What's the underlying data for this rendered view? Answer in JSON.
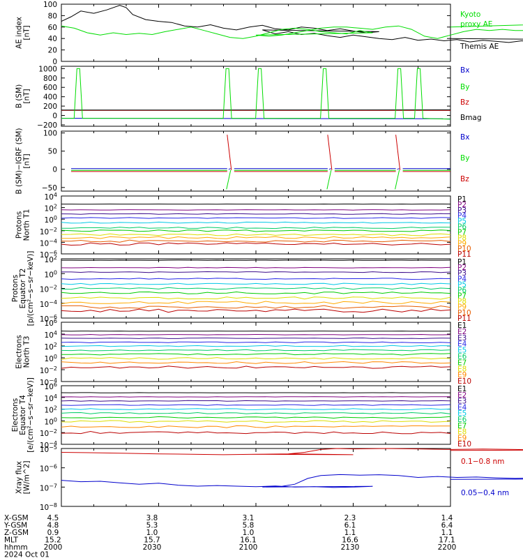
{
  "chart_data": [
    {
      "type": "line",
      "ylabel": [
        "AE index",
        "[nT]"
      ],
      "ylim": [
        0,
        100
      ],
      "ticks": [
        "0",
        "20",
        "40",
        "60",
        "80",
        "100"
      ],
      "legend": [
        {
          "text": "Kyoto",
          "color": "#00dd00"
        },
        {
          "text": "proxy AE",
          "color": "#00dd00"
        },
        {
          "text": "Themis AE",
          "color": "#000000"
        }
      ],
      "series": [
        {
          "color": "#000000",
          "x": [
            2000,
            2003,
            2006,
            2010,
            2014,
            2018,
            2020,
            2022,
            2026,
            2030,
            2034,
            2038,
            2042,
            2046,
            2050,
            2054,
            2058,
            2062,
            2066,
            2070,
            2074,
            2078,
            2082,
            2086,
            2090,
            2094,
            2098,
            2102,
            2106,
            2110,
            2114,
            2118,
            2122,
            2126,
            2130,
            2134,
            2138,
            2142,
            2146,
            2150,
            2154,
            2158,
            2162,
            2166,
            2170,
            2174,
            2178,
            2182,
            2186,
            2190,
            2194,
            2198,
            2200
          ],
          "y": [
            70,
            78,
            88,
            84,
            90,
            98,
            94,
            82,
            73,
            70,
            68,
            62,
            60,
            64,
            58,
            55,
            60,
            63,
            57,
            55,
            60,
            58,
            54,
            57,
            53,
            50,
            52,
            55,
            48,
            52,
            47,
            49,
            45,
            42,
            46,
            43,
            40,
            38,
            42,
            37,
            39,
            36,
            38,
            34,
            37,
            35,
            33,
            36,
            32,
            34,
            36,
            38,
            40
          ]
        },
        {
          "color": "#00dd00",
          "x": [
            2000,
            2004,
            2008,
            2012,
            2016,
            2020,
            2024,
            2028,
            2032,
            2036,
            2040,
            2044,
            2048,
            2052,
            2056,
            2060,
            2064,
            2068,
            2072,
            2076,
            2080,
            2084,
            2088,
            2092,
            2096,
            2100,
            2104,
            2108,
            2112,
            2116,
            2120,
            2124,
            2128,
            2132,
            2136,
            2140,
            2144,
            2148,
            2152,
            2156,
            2160,
            2164,
            2168,
            2172,
            2176,
            2180,
            2184,
            2188,
            2192,
            2196,
            2200
          ],
          "y": [
            62,
            58,
            50,
            46,
            50,
            47,
            49,
            47,
            52,
            56,
            60,
            54,
            48,
            42,
            40,
            44,
            50,
            56,
            58,
            56,
            52,
            50,
            48,
            54,
            50,
            46,
            44,
            46,
            50,
            54,
            58,
            60,
            60,
            58,
            56,
            60,
            62,
            56,
            44,
            40,
            46,
            52,
            56,
            54,
            56,
            54,
            54,
            56,
            60,
            66,
            60
          ]
        }
      ]
    },
    {
      "type": "line",
      "ylabel": [
        "B (SM)",
        "[nT]"
      ],
      "ylim": [
        -230,
        1050
      ],
      "ticks": [
        "−200",
        "0",
        "200",
        "400",
        "600",
        "800",
        "1000"
      ],
      "legend": [
        {
          "text": "Bx",
          "color": "#0000cc"
        },
        {
          "text": "By",
          "color": "#00dd00"
        },
        {
          "text": "Bz",
          "color": "#cc0000"
        },
        {
          "text": "Bmag",
          "color": "#000000"
        }
      ],
      "spikes": [
        2005,
        2051,
        2061,
        2081,
        2144,
        2150
      ]
    },
    {
      "type": "line",
      "ylabel": [
        "B (SM)−IGRF (SM)",
        "[nT]"
      ],
      "ylim": [
        -60,
        105
      ],
      "ticks": [
        "−50",
        "0",
        "50",
        "100"
      ],
      "legend": [
        {
          "text": "Bx",
          "color": "#0000cc"
        },
        {
          "text": "By",
          "color": "#00dd00"
        },
        {
          "text": "Bz",
          "color": "#cc0000"
        }
      ],
      "crossings": [
        2052,
        2083,
        2144
      ]
    },
    {
      "type": "line",
      "ylabel": [
        "Protons",
        "North T1"
      ],
      "logrange": [
        -6,
        4
      ],
      "ticks": [
        "10^-6",
        "10^-4",
        "10^-2",
        "10^0",
        "10^2",
        "10^4"
      ],
      "channels": [
        {
          "name": "P1",
          "color": "#000000",
          "level": 2.6
        },
        {
          "name": "P2",
          "color": "#7f007f",
          "level": 1.6
        },
        {
          "name": "P3",
          "color": "#3a0a8a",
          "level": 0.9
        },
        {
          "name": "P4",
          "color": "#2626e6",
          "level": 0.2
        },
        {
          "name": "P5",
          "color": "#00c8e6",
          "level": -0.6
        },
        {
          "name": "P6",
          "color": "#00cc66",
          "level": -1.5
        },
        {
          "name": "P7",
          "color": "#00cc00",
          "level": -2.0
        },
        {
          "name": "P8",
          "color": "#dddd00",
          "level": -2.7
        },
        {
          "name": "P9",
          "color": "#ffaa00",
          "level": -3.2
        },
        {
          "name": "P10",
          "color": "#e65c00",
          "level": -3.8
        },
        {
          "name": "P11",
          "color": "#bb0000",
          "level": -4.3
        }
      ]
    },
    {
      "type": "line",
      "ylabel": [
        "Protons",
        "Equator T2",
        "[p/(cm²−s−sr−keV)]"
      ],
      "logrange": [
        -6,
        2
      ],
      "ticks": [
        "10^-6",
        "10^-4",
        "10^-2",
        "10^0",
        "10^2"
      ],
      "channels": [
        {
          "name": "P1",
          "color": "#000000",
          "level": 1.8
        },
        {
          "name": "P2",
          "color": "#7f007f",
          "level": 0.8
        },
        {
          "name": "P3",
          "color": "#3a0a8a",
          "level": 0.2
        },
        {
          "name": "P4",
          "color": "#2626e6",
          "level": -0.7
        },
        {
          "name": "P5",
          "color": "#00c8e6",
          "level": -1.4
        },
        {
          "name": "P6",
          "color": "#00cc66",
          "level": -2.0
        },
        {
          "name": "P7",
          "color": "#00cc00",
          "level": -2.6
        },
        {
          "name": "P8",
          "color": "#dddd00",
          "level": -3.3
        },
        {
          "name": "P9",
          "color": "#ffaa00",
          "level": -3.9
        },
        {
          "name": "P10",
          "color": "#e65c00",
          "level": -4.5
        },
        {
          "name": "P11",
          "color": "#bb0000",
          "level": -5.0
        }
      ]
    },
    {
      "type": "line",
      "ylabel": [
        "Electrons",
        "North T3"
      ],
      "logrange": [
        -4,
        6
      ],
      "ticks": [
        "10^-4",
        "10^-2",
        "10^0",
        "10^2",
        "10^4",
        "10^6"
      ],
      "channels": [
        {
          "name": "E1",
          "color": "#000000",
          "level": 4.5
        },
        {
          "name": "E2",
          "color": "#7f007f",
          "level": 3.9
        },
        {
          "name": "E3",
          "color": "#3a0a8a",
          "level": 3.3
        },
        {
          "name": "E4",
          "color": "#2626e6",
          "level": 2.6
        },
        {
          "name": "E5",
          "color": "#00c8e6",
          "level": 2.0
        },
        {
          "name": "E6",
          "color": "#00cc66",
          "level": 1.3
        },
        {
          "name": "E7",
          "color": "#00cc00",
          "level": 0.6
        },
        {
          "name": "E8",
          "color": "#dddd00",
          "level": -0.1
        },
        {
          "name": "E9",
          "color": "#ff8800",
          "level": -0.8
        },
        {
          "name": "E10",
          "color": "#bb0000",
          "level": -1.6
        }
      ]
    },
    {
      "type": "line",
      "ylabel": [
        "Electrons",
        "Equator T4",
        "[e/(cm²−s−sr−keV)]"
      ],
      "logrange": [
        -4,
        6
      ],
      "ticks": [
        "10^-4",
        "10^-2",
        "10^0",
        "10^2",
        "10^4",
        "10^6"
      ],
      "channels": [
        {
          "name": "E1",
          "color": "#000000",
          "level": 4.8
        },
        {
          "name": "E2",
          "color": "#7f007f",
          "level": 4.1
        },
        {
          "name": "E3",
          "color": "#3a0a8a",
          "level": 3.4
        },
        {
          "name": "E4",
          "color": "#2626e6",
          "level": 2.7
        },
        {
          "name": "E5",
          "color": "#00c8e6",
          "level": 2.0
        },
        {
          "name": "E6",
          "color": "#00cc66",
          "level": 1.3
        },
        {
          "name": "E7",
          "color": "#00cc00",
          "level": 0.6
        },
        {
          "name": "E8",
          "color": "#dddd00",
          "level": -0.1
        },
        {
          "name": "E9",
          "color": "#ff8800",
          "level": -1.0
        },
        {
          "name": "E10",
          "color": "#bb0000",
          "level": -2.0
        }
      ]
    },
    {
      "type": "line",
      "ylabel": [
        "Xray flux",
        "[W/m^2]"
      ],
      "logrange": [
        -8,
        -5
      ],
      "ticks": [
        "10^-8",
        "10^-7",
        "10^-6",
        "10^-5"
      ],
      "legend": [
        {
          "text": "0.1−0.8 nm",
          "color": "#cc0000"
        },
        {
          "text": "0.05−0.4 nm",
          "color": "#0000cc"
        }
      ],
      "series": [
        {
          "color": "#cc0000",
          "x": [
            2000,
            2010,
            2020,
            2030,
            2040,
            2050,
            2060,
            2070,
            2080,
            2090,
            2100,
            2110,
            2115,
            2120,
            2125,
            2130,
            2140,
            2150,
            2160,
            2170,
            2180,
            2190,
            2200
          ],
          "y": [
            -5.2,
            -5.22,
            -5.25,
            -5.28,
            -5.3,
            -5.32,
            -5.3,
            -5.28,
            -5.3,
            -5.32,
            -5.3,
            -5.28,
            -5.2,
            -5.05,
            -5.0,
            -5.02,
            -5.0,
            -5.02,
            -5.05,
            -5.03,
            -5.05,
            -5.08,
            -5.1
          ]
        },
        {
          "color": "#0000cc",
          "x": [
            2000,
            2006,
            2012,
            2018,
            2024,
            2030,
            2036,
            2042,
            2048,
            2054,
            2060,
            2066,
            2072,
            2078,
            2084,
            2090,
            2096,
            2102,
            2108,
            2112,
            2116,
            2120,
            2126,
            2132,
            2138,
            2144,
            2150,
            2156,
            2162,
            2168,
            2174,
            2180,
            2186,
            2192,
            2200
          ],
          "y": [
            -6.65,
            -6.72,
            -6.7,
            -6.78,
            -6.85,
            -6.8,
            -6.9,
            -6.95,
            -6.92,
            -6.95,
            -6.98,
            -6.94,
            -7.0,
            -6.98,
            -7.02,
            -7.0,
            -6.96,
            -7.0,
            -6.96,
            -6.85,
            -6.55,
            -6.4,
            -6.35,
            -6.38,
            -6.36,
            -6.4,
            -6.5,
            -6.45,
            -6.5,
            -6.48,
            -6.52,
            -6.55,
            -6.52,
            -6.58,
            -6.6
          ]
        }
      ]
    }
  ],
  "footer": {
    "rows": [
      {
        "label": "X-GSM",
        "values": [
          "4.5",
          "3.8",
          "3.1",
          "2.3",
          "1.4"
        ]
      },
      {
        "label": "Y-GSM",
        "values": [
          "4.8",
          "5.3",
          "5.8",
          "6.1",
          "6.4"
        ]
      },
      {
        "label": "Z-GSM",
        "values": [
          "0.9",
          "1.0",
          "1.0",
          "1.1",
          "1.1"
        ]
      },
      {
        "label": "MLT",
        "values": [
          "15.2",
          "15.7",
          "16.1",
          "16.6",
          "17.1"
        ]
      },
      {
        "label": "hhmm",
        "values": [
          "2000",
          "2030",
          "2100",
          "2130",
          "2200"
        ]
      }
    ],
    "date": "2024 Oct 01"
  },
  "colors": {
    "kyoto": "#00dd00",
    "themis": "#000000",
    "bx": "#0000cc",
    "by": "#00dd00",
    "bz": "#cc0000",
    "bmag": "#000000"
  }
}
